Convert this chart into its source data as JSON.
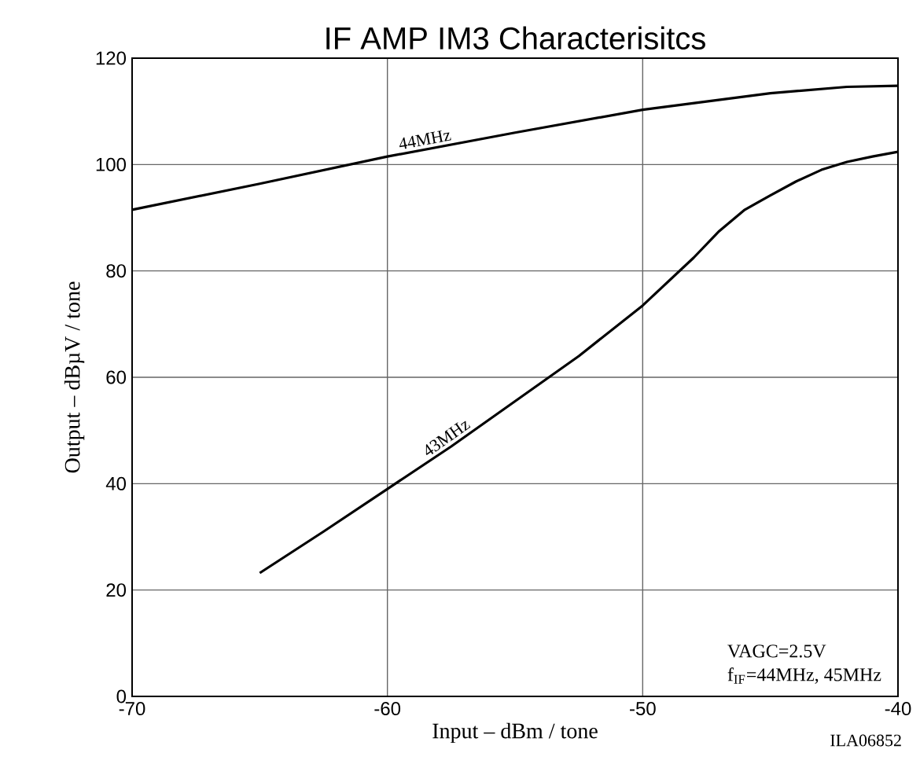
{
  "chart_data": {
    "type": "line",
    "title": "IF AMP IM3 Characterisitcs",
    "xlabel": "Input  –  dBm / tone",
    "ylabel": "Output  –  dBµV / tone",
    "xlim": [
      -70,
      -40
    ],
    "ylim": [
      0,
      120
    ],
    "xticks": [
      -70,
      -60,
      -50,
      -40
    ],
    "yticks": [
      0,
      20,
      40,
      60,
      80,
      100,
      120
    ],
    "grid": true,
    "marker": "none",
    "line_style": "solid",
    "annotations": [
      "VAGC=2.5V",
      "f$_{IF}$=44MHz, 45MHz",
      "ILA06852"
    ],
    "series": [
      {
        "name": "44MHz",
        "color": "#000000",
        "x": [
          -70,
          -65,
          -60,
          -55,
          -50,
          -45,
          -42,
          -40
        ],
        "values": [
          91.5,
          96.4,
          101.5,
          106,
          110.3,
          113.4,
          114.6,
          114.8
        ]
      },
      {
        "name": "43MHz",
        "color": "#000000",
        "x": [
          -65,
          -62.5,
          -60,
          -57.5,
          -55,
          -52.5,
          -50,
          -49,
          -48,
          -47,
          -46,
          -45,
          -44,
          -43,
          -42,
          -41,
          -40
        ],
        "values": [
          23.2,
          31,
          39,
          47,
          55.5,
          64,
          73.5,
          78,
          82.5,
          87.5,
          91.5,
          94.2,
          96.8,
          99,
          100.5,
          101.5,
          102.4
        ]
      }
    ]
  }
}
